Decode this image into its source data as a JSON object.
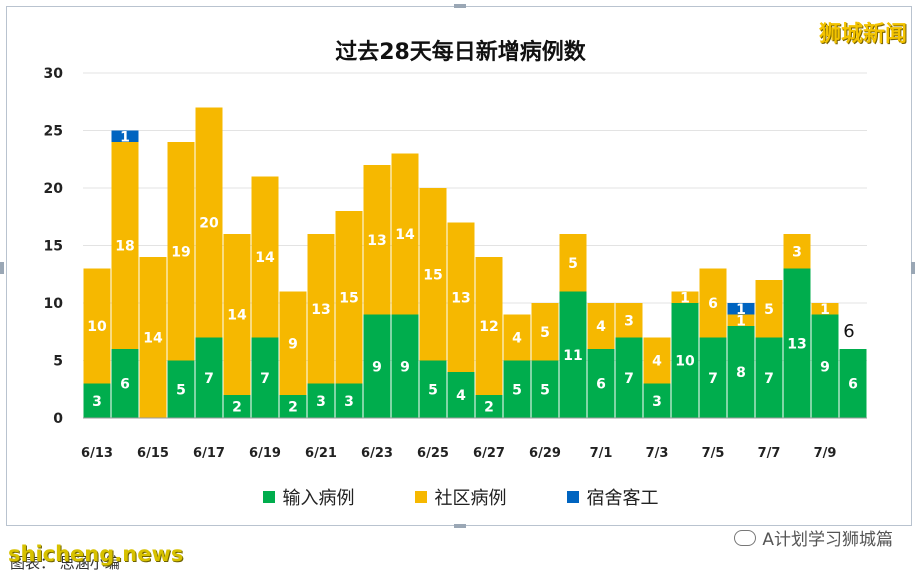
{
  "watermark": "狮城新闻",
  "wechat_label": "A计划学习狮城篇",
  "site_label": "shicheng.news",
  "caption": "图表： 思涵小编",
  "colors": {
    "import": "#00ad4d",
    "community": "#f6b800",
    "dorm": "#0064c0"
  },
  "chart_data": {
    "type": "bar",
    "stacked": true,
    "title": "过去28天每日新增病例数",
    "categories": [
      "6/13",
      "6/14",
      "6/15",
      "6/16",
      "6/17",
      "6/18",
      "6/19",
      "6/20",
      "6/21",
      "6/22",
      "6/23",
      "6/24",
      "6/25",
      "6/26",
      "6/27",
      "6/28",
      "6/29",
      "6/30",
      "7/1",
      "7/2",
      "7/3",
      "7/4",
      "7/5",
      "7/6",
      "7/7",
      "7/8",
      "7/9",
      "7/10"
    ],
    "tick_labels": [
      "6/13",
      "",
      "6/15",
      "",
      "6/17",
      "",
      "6/19",
      "",
      "6/21",
      "",
      "6/23",
      "",
      "6/25",
      "",
      "6/27",
      "",
      "6/29",
      "",
      "7/1",
      "",
      "7/3",
      "",
      "7/5",
      "",
      "7/7",
      "",
      "7/9",
      ""
    ],
    "ylim": [
      0,
      30
    ],
    "yticks": [
      0,
      5,
      10,
      15,
      20,
      25,
      30
    ],
    "grid": true,
    "legend_position": "bottom",
    "series": [
      {
        "name": "输入病例",
        "values": [
          3,
          6,
          0,
          5,
          7,
          2,
          7,
          2,
          3,
          3,
          9,
          9,
          5,
          4,
          2,
          5,
          5,
          11,
          6,
          7,
          3,
          10,
          7,
          8,
          7,
          13,
          9,
          6
        ]
      },
      {
        "name": "社区病例",
        "values": [
          10,
          18,
          14,
          19,
          20,
          14,
          14,
          9,
          13,
          15,
          13,
          14,
          15,
          13,
          12,
          4,
          5,
          5,
          4,
          3,
          4,
          1,
          6,
          1,
          5,
          3,
          1,
          0
        ]
      },
      {
        "name": "宿舍客工",
        "values": [
          0,
          1,
          0,
          0,
          0,
          0,
          0,
          0,
          0,
          0,
          0,
          0,
          0,
          0,
          0,
          0,
          0,
          0,
          0,
          0,
          0,
          0,
          0,
          1,
          0,
          0,
          0,
          0
        ]
      }
    ],
    "annotation": "6"
  }
}
